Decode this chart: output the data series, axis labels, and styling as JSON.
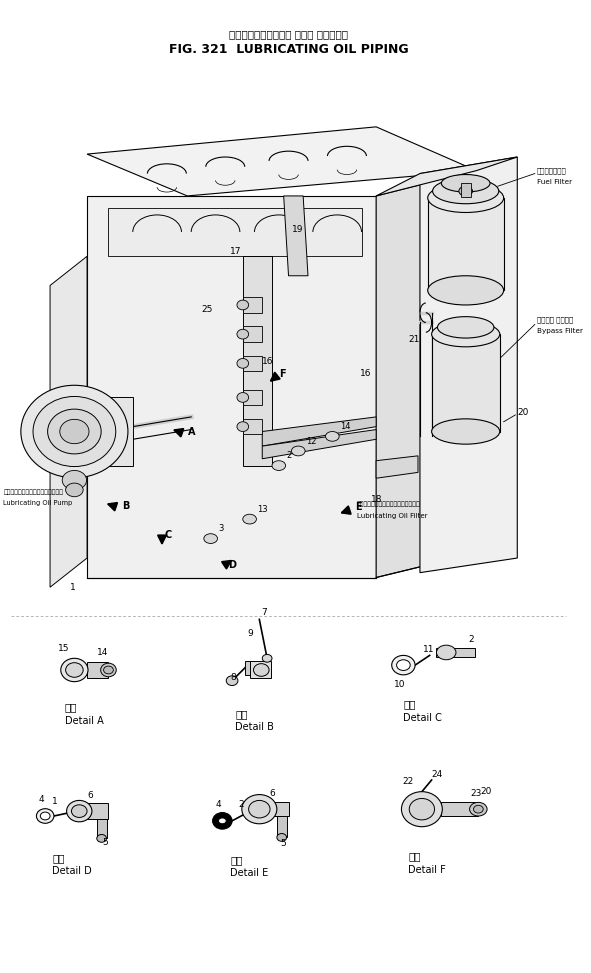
{
  "title_jp": "ルーブリケーティング オイル パイピング",
  "title_en": "FIG. 321  LUBRICATING OIL PIPING",
  "fuel_filter_jp": "フエルフィルタ",
  "fuel_filter_en": "Fuel Filter",
  "bypass_filter_jp": "バイパス フィルタ",
  "bypass_filter_en": "Bypass Filter",
  "lub_filter_jp": "ルーブリケーティングオイルフィルタ",
  "lub_filter_en": "Lubricating Oil Filter",
  "lub_pump_jp": "ルーブリケーティングオイルポンプ",
  "lub_pump_en": "Lubricating Oil Pump",
  "detail_jp": "詳細",
  "detail_a": "Detail A",
  "detail_b": "Detail B",
  "detail_c": "Detail C",
  "detail_d": "Detail D",
  "detail_e": "Detail E",
  "detail_f": "Detail F",
  "bg": "#ffffff",
  "lc": "#000000"
}
